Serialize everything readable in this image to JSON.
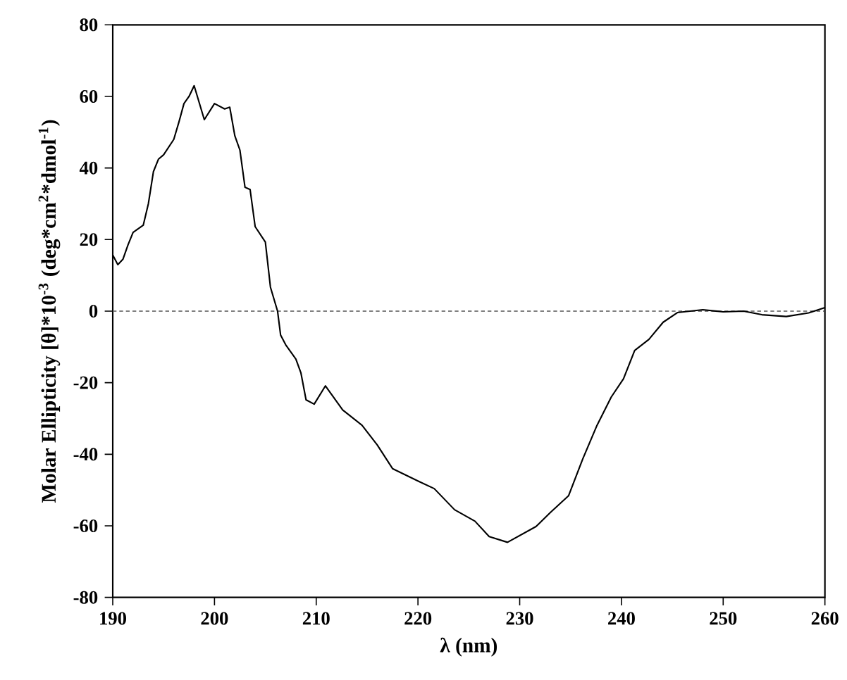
{
  "chart_data": {
    "type": "line",
    "xlabel": "λ (nm)",
    "ylabel": "Molar Ellipticity [θ]*10$^{-3}$ (deg*cm$^{2}$*dmol$^{-1}$)",
    "xlim": [
      190,
      260
    ],
    "ylim": [
      -80,
      80
    ],
    "xticks": [
      190,
      200,
      210,
      220,
      230,
      240,
      250,
      260
    ],
    "yticks": [
      -80,
      -60,
      -40,
      -20,
      0,
      20,
      40,
      60,
      80
    ],
    "grid": false,
    "marker": "none",
    "line_style": "solid",
    "ref_lines": [
      {
        "axis": "y",
        "value": 0,
        "line_style": "dashed",
        "color": "#555555"
      }
    ],
    "series": [
      {
        "color": "#000000",
        "x": [
          190,
          190.5,
          191,
          191.5,
          192,
          193,
          193.5,
          194,
          194.5,
          195,
          196,
          196.5,
          197,
          197.5,
          198,
          199,
          200,
          201,
          201.5,
          202,
          202.5,
          203,
          203.5,
          204,
          205,
          205.5,
          206.2,
          206.5,
          207,
          208,
          208.5,
          209,
          209.8,
          210.9,
          212.6,
          214.5,
          216,
          217.5,
          220.1,
          221.6,
          223.6,
          225.6,
          227,
          228.8,
          231.6,
          233,
          234.8,
          236.2,
          237.6,
          239,
          240.2,
          241.3,
          242.7,
          244.1,
          245.5,
          248,
          250,
          252,
          253.8,
          256.2,
          258.4,
          260
        ],
        "values": [
          15.7,
          13,
          14.5,
          18.5,
          22,
          24,
          30,
          39,
          42.5,
          43.7,
          48,
          52.8,
          58,
          60,
          63,
          53.5,
          58,
          56.5,
          57,
          49,
          45,
          34.6,
          34,
          23.6,
          19.3,
          6.7,
          0,
          -6.7,
          -9.4,
          -13.4,
          -17.3,
          -24.8,
          -26,
          -20.9,
          -27.6,
          -31.9,
          -37.4,
          -44,
          -47.6,
          -49.6,
          -55.5,
          -58.7,
          -63,
          -64.6,
          -60.2,
          -56.3,
          -51.6,
          -41.3,
          -31.9,
          -24,
          -18.9,
          -11,
          -7.9,
          -3.1,
          -0.4,
          0.4,
          -0.2,
          0,
          -1,
          -1.5,
          -0.5,
          1
        ]
      }
    ]
  }
}
